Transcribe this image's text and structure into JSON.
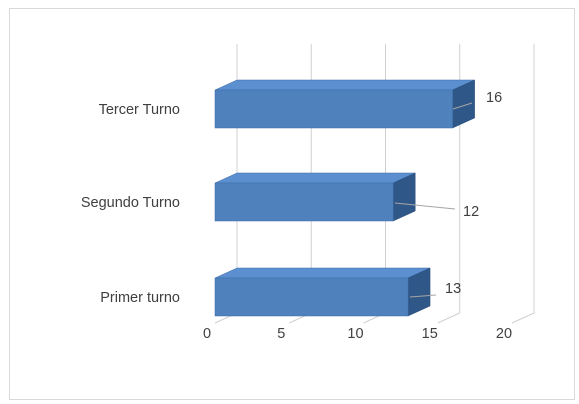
{
  "chart_data": {
    "type": "bar",
    "orientation": "horizontal",
    "style": "3d",
    "title": "",
    "xlabel": "",
    "ylabel": "",
    "categories": [
      "Tercer Turno",
      "Segundo Turno",
      "Primer turno"
    ],
    "values": [
      16,
      12,
      13
    ],
    "data_labels": [
      "16",
      "12",
      "13"
    ],
    "xlim": [
      0,
      20
    ],
    "xticks": [
      0,
      5,
      10,
      15,
      20
    ],
    "xtick_labels": [
      "0",
      "5",
      "10",
      "15",
      "20"
    ],
    "grid": true,
    "legend": "none",
    "colors": {
      "bar_front": "#4f81bd",
      "bar_top": "#5b8fd0",
      "bar_side": "#2f5788",
      "grid": "#d0d0d0"
    }
  }
}
